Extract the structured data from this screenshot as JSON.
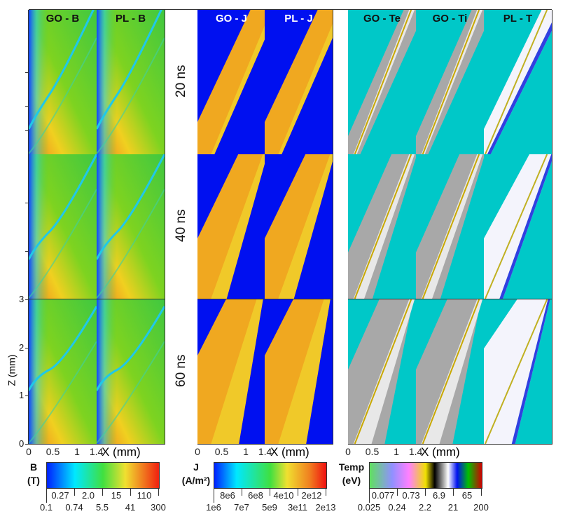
{
  "chart_data": {
    "type": "heatmap",
    "panel_titles": [
      "GO - B",
      "PL - B",
      "GO - J",
      "PL - J",
      "GO - Te",
      "GO - Ti",
      "PL - T"
    ],
    "row_labels": [
      "20 ns",
      "40 ns",
      "60 ns"
    ],
    "xlabel": "X (mm)",
    "ylabel": "Z (mm)",
    "x_ticks": [
      "0",
      "0.5",
      "1",
      "1.4"
    ],
    "y_ticks": [
      "0",
      "1",
      "2",
      "3"
    ],
    "xlim": [
      0,
      1.4
    ],
    "ylim": [
      0,
      3
    ],
    "colorbars": [
      {
        "label": "B",
        "unit": "(T)",
        "upper_ticks": [
          "0.27",
          "2.0",
          "15",
          "110"
        ],
        "lower_ticks": [
          "0.1",
          "0.74",
          "5.5",
          "41",
          "300"
        ]
      },
      {
        "label": "J",
        "unit": "(A/m²)",
        "upper_ticks": [
          "8e6",
          "6e8",
          "4e10",
          "2e12"
        ],
        "lower_ticks": [
          "1e6",
          "7e7",
          "5e9",
          "3e11",
          "2e13"
        ]
      },
      {
        "label": "Temp",
        "unit": "(eV)",
        "upper_ticks": [
          "0.077",
          "0.73",
          "6.9",
          "65"
        ],
        "lower_ticks": [
          "0.025",
          "0.24",
          "2.2",
          "21",
          "200"
        ]
      }
    ]
  }
}
